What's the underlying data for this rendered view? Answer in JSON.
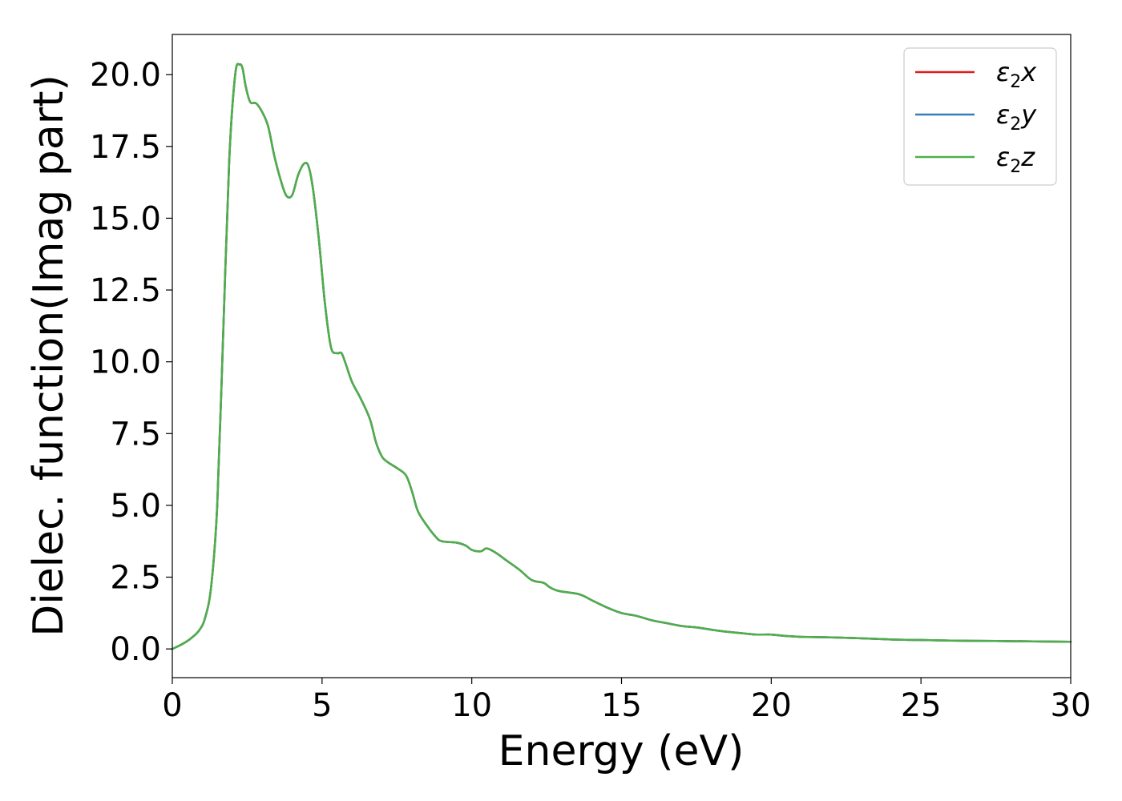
{
  "chart_data": {
    "type": "line",
    "xlabel": "Energy (eV)",
    "ylabel": "Dielec. function(Imag part)",
    "xlim": [
      0,
      30
    ],
    "ylim": [
      -1.0,
      21.4
    ],
    "xticks": [
      0,
      5,
      10,
      15,
      20,
      25,
      30
    ],
    "xtick_labels": [
      "0",
      "5",
      "10",
      "15",
      "20",
      "25",
      "30"
    ],
    "yticks": [
      0,
      2.5,
      5,
      7.5,
      10,
      12.5,
      15,
      17.5,
      20
    ],
    "ytick_labels": [
      "0.0",
      "2.5",
      "5.0",
      "7.5",
      "10.0",
      "12.5",
      "15.0",
      "17.5",
      "20.0"
    ],
    "grid": false,
    "legend_position": "top-right",
    "x": [
      0,
      0.3,
      0.6,
      0.9,
      1.1,
      1.3,
      1.5,
      1.7,
      1.9,
      2.1,
      2.25,
      2.35,
      2.45,
      2.6,
      2.8,
      3.0,
      3.2,
      3.4,
      3.6,
      3.8,
      4.0,
      4.2,
      4.4,
      4.55,
      4.7,
      4.9,
      5.1,
      5.3,
      5.5,
      5.65,
      5.8,
      6.0,
      6.3,
      6.6,
      6.8,
      7.0,
      7.2,
      7.5,
      7.8,
      8.0,
      8.2,
      8.5,
      8.8,
      9.0,
      9.5,
      9.8,
      10.0,
      10.3,
      10.5,
      10.8,
      11.2,
      11.6,
      12.0,
      12.4,
      12.6,
      12.8,
      13.0,
      13.6,
      14.0,
      14.5,
      15.0,
      15.5,
      16.0,
      16.5,
      17.0,
      17.5,
      18.0,
      18.5,
      19.0,
      19.5,
      20.0,
      20.5,
      21.0,
      22.0,
      23.0,
      24.0,
      25.0,
      26.0,
      27.0,
      28.0,
      29.0,
      30.0
    ],
    "series": [
      {
        "name": "ε2x",
        "color": "#e41a1c",
        "values": [
          0.0,
          0.15,
          0.35,
          0.65,
          1.1,
          2.2,
          5.0,
          11.0,
          17.0,
          20.0,
          20.35,
          20.2,
          19.6,
          19.05,
          19.0,
          18.7,
          18.2,
          17.2,
          16.4,
          15.8,
          15.8,
          16.5,
          16.9,
          16.8,
          16.0,
          14.2,
          12.0,
          10.5,
          10.3,
          10.3,
          9.9,
          9.3,
          8.7,
          8.0,
          7.2,
          6.7,
          6.5,
          6.3,
          6.05,
          5.5,
          4.8,
          4.3,
          3.9,
          3.75,
          3.7,
          3.6,
          3.45,
          3.4,
          3.5,
          3.35,
          3.05,
          2.75,
          2.4,
          2.3,
          2.15,
          2.05,
          2.0,
          1.9,
          1.7,
          1.45,
          1.25,
          1.15,
          1.0,
          0.9,
          0.8,
          0.75,
          0.67,
          0.6,
          0.55,
          0.5,
          0.5,
          0.45,
          0.42,
          0.4,
          0.37,
          0.33,
          0.31,
          0.29,
          0.28,
          0.27,
          0.26,
          0.25
        ]
      },
      {
        "name": "ε2y",
        "color": "#377eb8",
        "values": [
          0.0,
          0.15,
          0.35,
          0.65,
          1.1,
          2.2,
          5.0,
          11.0,
          17.0,
          20.0,
          20.35,
          20.2,
          19.6,
          19.05,
          19.0,
          18.7,
          18.2,
          17.2,
          16.4,
          15.8,
          15.8,
          16.5,
          16.9,
          16.8,
          16.0,
          14.2,
          12.0,
          10.5,
          10.3,
          10.3,
          9.9,
          9.3,
          8.7,
          8.0,
          7.2,
          6.7,
          6.5,
          6.3,
          6.05,
          5.5,
          4.8,
          4.3,
          3.9,
          3.75,
          3.7,
          3.6,
          3.45,
          3.4,
          3.5,
          3.35,
          3.05,
          2.75,
          2.4,
          2.3,
          2.15,
          2.05,
          2.0,
          1.9,
          1.7,
          1.45,
          1.25,
          1.15,
          1.0,
          0.9,
          0.8,
          0.75,
          0.67,
          0.6,
          0.55,
          0.5,
          0.5,
          0.45,
          0.42,
          0.4,
          0.37,
          0.33,
          0.31,
          0.29,
          0.28,
          0.27,
          0.26,
          0.25
        ]
      },
      {
        "name": "ε2z",
        "color": "#4daf4a",
        "values": [
          0.0,
          0.15,
          0.35,
          0.65,
          1.1,
          2.2,
          5.0,
          11.0,
          17.0,
          20.0,
          20.35,
          20.2,
          19.6,
          19.05,
          19.0,
          18.7,
          18.2,
          17.2,
          16.4,
          15.8,
          15.8,
          16.5,
          16.9,
          16.8,
          16.0,
          14.2,
          12.0,
          10.5,
          10.3,
          10.3,
          9.9,
          9.3,
          8.7,
          8.0,
          7.2,
          6.7,
          6.5,
          6.3,
          6.05,
          5.5,
          4.8,
          4.3,
          3.9,
          3.75,
          3.7,
          3.6,
          3.45,
          3.4,
          3.5,
          3.35,
          3.05,
          2.75,
          2.4,
          2.3,
          2.15,
          2.05,
          2.0,
          1.9,
          1.7,
          1.45,
          1.25,
          1.15,
          1.0,
          0.9,
          0.8,
          0.75,
          0.67,
          0.6,
          0.55,
          0.5,
          0.5,
          0.45,
          0.42,
          0.4,
          0.37,
          0.33,
          0.31,
          0.29,
          0.28,
          0.27,
          0.26,
          0.25
        ]
      }
    ],
    "legend": [
      {
        "symbol": "ε",
        "sub": "2",
        "axis": "x",
        "color": "#e41a1c"
      },
      {
        "symbol": "ε",
        "sub": "2",
        "axis": "y",
        "color": "#377eb8"
      },
      {
        "symbol": "ε",
        "sub": "2",
        "axis": "z",
        "color": "#4daf4a"
      }
    ]
  }
}
